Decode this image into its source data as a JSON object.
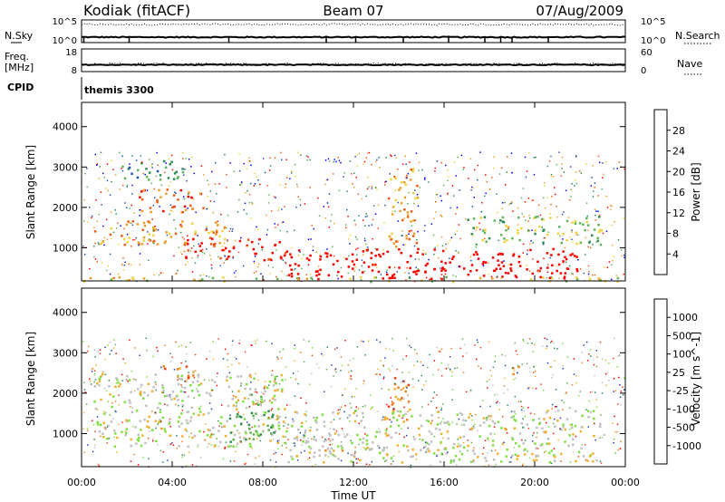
{
  "header": {
    "site": "Kodiak (fitACF)",
    "beam": "Beam 07",
    "date": "07/Aug/2009"
  },
  "chart_data": [
    {
      "type": "line",
      "panel": "noise",
      "left_label": "N.Sky",
      "right_label": "N.Search",
      "left_ticks": [
        "10^5",
        "10^0"
      ],
      "right_ticks": [
        "10^5",
        "10^0"
      ],
      "sky_level": 1.2,
      "search_level": 4.0,
      "dips_hours": [
        0.1,
        2.1,
        6.5,
        10.8,
        12.1,
        14.2,
        16.2,
        17.8,
        18.5,
        19.0,
        20.6
      ]
    },
    {
      "type": "line",
      "panel": "frequency",
      "left_label_1": "Freq.",
      "left_label_2": "[MHz]",
      "left_ticks": [
        "18",
        "8"
      ],
      "right_label": "Nave",
      "right_ticks": [
        "60",
        "0"
      ],
      "freq_mhz": 11.0,
      "nave": 20
    },
    {
      "type": "table",
      "panel": "cpid",
      "label": "CPID",
      "value": "themis 3300"
    },
    {
      "type": "heatmap",
      "panel": "power",
      "ylabel": "Slant Range [km]",
      "ylim": [
        180,
        4600
      ],
      "yticks": [
        1000,
        2000,
        3000,
        4000
      ],
      "colorbar_label": "Power [dB]",
      "colorbar_ticks": [
        "4",
        "8",
        "12",
        "16",
        "20",
        "24",
        "28"
      ],
      "colors": [
        "#0000ff",
        "#1e50b4",
        "#2d8c50",
        "#5fb45a",
        "#f0d23c",
        "#f0a028",
        "#f05a14",
        "#ff0000"
      ],
      "regions": [
        {
          "t": [
            0.5,
            6.5
          ],
          "r": [
            1100,
            1700
          ],
          "level": 5
        },
        {
          "t": [
            2.5,
            5.5
          ],
          "r": [
            1900,
            2500
          ],
          "level": 6
        },
        {
          "t": [
            4.5,
            9.0
          ],
          "r": [
            700,
            1250
          ],
          "level": 7
        },
        {
          "t": [
            9.0,
            22.0
          ],
          "r": [
            250,
            1000
          ],
          "level": 8
        },
        {
          "t": [
            13.5,
            14.8
          ],
          "r": [
            1000,
            3000
          ],
          "level": 5
        },
        {
          "t": [
            0.0,
            24.0
          ],
          "r": [
            180,
            300
          ],
          "level": 4
        },
        {
          "t": [
            17.0,
            23.0
          ],
          "r": [
            1100,
            1800
          ],
          "level": 3
        },
        {
          "t": [
            1.5,
            4.5
          ],
          "r": [
            2700,
            3200
          ],
          "level": 2
        }
      ]
    },
    {
      "type": "heatmap",
      "panel": "velocity",
      "ylabel": "Slant Range [km]",
      "ylim": [
        180,
        4600
      ],
      "yticks": [
        1000,
        2000,
        3000,
        4000
      ],
      "xlabel": "Time UT",
      "xlim": [
        0,
        24
      ],
      "xticks": [
        "00:00",
        "04:00",
        "08:00",
        "12:00",
        "16:00",
        "20:00",
        "00:00"
      ],
      "colorbar_label": "Velocity [m s^-1]",
      "colorbar_ticks": [
        "1000",
        "500",
        "100",
        "25",
        "-25",
        "-100",
        "-500",
        "-1000"
      ],
      "colors": [
        "#2040c0",
        "#2d8c50",
        "#60b050",
        "#80e040",
        "#c0c0c0",
        "#f0b030",
        "#f08020",
        "#f04010",
        "#ff0000"
      ],
      "regions": [
        {
          "t": [
            0.5,
            9.0
          ],
          "r": [
            700,
            2500
          ],
          "level": 4
        },
        {
          "t": [
            9.0,
            23.0
          ],
          "r": [
            300,
            1600
          ],
          "level": 4
        },
        {
          "t": [
            3.5,
            5.0
          ],
          "r": [
            2300,
            2700
          ],
          "level": 6
        },
        {
          "t": [
            6.5,
            8.5
          ],
          "r": [
            800,
            2000
          ],
          "level": 2
        },
        {
          "t": [
            13.5,
            14.5
          ],
          "r": [
            1300,
            2400
          ],
          "level": 6
        },
        {
          "t": [
            10.5,
            11.5
          ],
          "r": [
            550,
            800
          ],
          "level": 5
        },
        {
          "t": [
            18.8,
            19.3
          ],
          "r": [
            2400,
            2700
          ],
          "level": 7
        }
      ]
    }
  ]
}
